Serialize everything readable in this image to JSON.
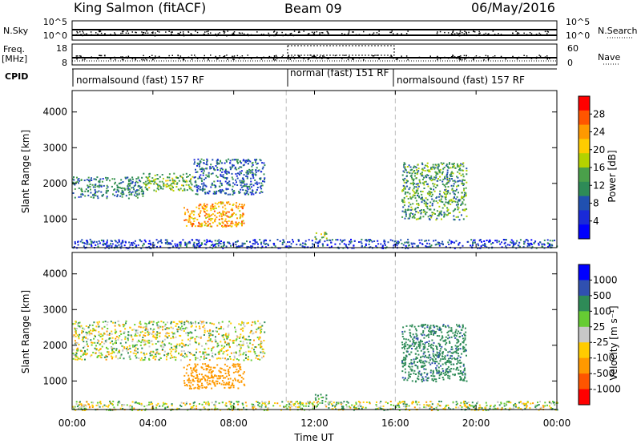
{
  "header": {
    "station": "King Salmon (fitACF)",
    "beam": "Beam 09",
    "date": "06/May/2016"
  },
  "strips": {
    "nsky_label": "N.Sky",
    "nsky_ticks": [
      "10^5",
      "10^0"
    ],
    "nsearch_label": "N.Search",
    "freq_label_1": "Freq.",
    "freq_label_2": "[MHz]",
    "freq_ticks": [
      "18",
      "8"
    ],
    "nave_label": "Nave",
    "nave_ticks": [
      "60",
      "0"
    ],
    "right_ticks_top": [
      "10^5",
      "10^0"
    ],
    "cpid_label": "CPID",
    "modes": [
      {
        "label": "normalsound (fast) 157 RF",
        "start": 0.0,
        "end": 10.6
      },
      {
        "label": "normal (fast) 151 RF",
        "start": 10.6,
        "end": 16.0
      },
      {
        "label": "normalsound (fast) 157 RF",
        "start": 16.0,
        "end": 24.0
      }
    ]
  },
  "axes": {
    "ylabel": "Slant Range [km]",
    "xlabel": "Time UT",
    "x_ticks": [
      "00:00",
      "04:00",
      "08:00",
      "12:00",
      "16:00",
      "20:00",
      "00:00"
    ],
    "y_ticks": [
      "1000",
      "2000",
      "3000",
      "4000"
    ]
  },
  "power_colorbar": {
    "label": "Power [dB]",
    "ticks": [
      "28",
      "24",
      "20",
      "16",
      "12",
      "8",
      "4"
    ],
    "colors": [
      "#ff0000",
      "#ff5500",
      "#ff9900",
      "#ffcc00",
      "#b4d200",
      "#4aa04a",
      "#2e8b57",
      "#2050b0",
      "#1a2ad8",
      "#0000ff"
    ]
  },
  "velocity_colorbar": {
    "label": "Velocity [m s⁻¹]",
    "ticks": [
      "1000",
      "500",
      "100",
      "25",
      "-25",
      "-100",
      "-500",
      "-1000"
    ],
    "colors": [
      "#0000ff",
      "#3050b0",
      "#2e8b57",
      "#66cc33",
      "#c8c8c8",
      "#ffcc00",
      "#ff9900",
      "#ff5500",
      "#ff0000"
    ]
  },
  "chart_data": {
    "type": "heatmap",
    "title": "King Salmon (fitACF) Beam 09 06/May/2016",
    "xlabel": "Time UT",
    "ylabel": "Slant Range [km]",
    "xlim": [
      0,
      24
    ],
    "ylim": [
      200,
      4600
    ],
    "mode_boundaries_hours": [
      10.6,
      16.0
    ],
    "panels": [
      {
        "name": "Power",
        "units": "dB",
        "range": [
          0,
          30
        ],
        "echo_regions": [
          {
            "t_start": 0.0,
            "t_end": 3.5,
            "range_start": 1600,
            "range_end": 2200,
            "value": 10
          },
          {
            "t_start": 3.5,
            "t_end": 6.0,
            "range_start": 1800,
            "range_end": 2300,
            "value": 14
          },
          {
            "t_start": 6.0,
            "t_end": 9.5,
            "range_start": 1700,
            "range_end": 2700,
            "value": 8
          },
          {
            "t_start": 5.5,
            "t_end": 8.5,
            "range_start": 800,
            "range_end": 1500,
            "value": 22
          },
          {
            "t_start": 12.0,
            "t_end": 12.6,
            "range_start": 450,
            "range_end": 650,
            "value": 16
          },
          {
            "t_start": 16.3,
            "t_end": 19.5,
            "range_start": 1000,
            "range_end": 2600,
            "value": 12
          },
          {
            "t_start": 0.0,
            "t_end": 24.0,
            "range_start": 200,
            "range_end": 450,
            "value": 6
          }
        ]
      },
      {
        "name": "Velocity",
        "units": "m s-1",
        "range": [
          -1000,
          1000
        ],
        "echo_regions": [
          {
            "t_start": 0.0,
            "t_end": 9.5,
            "range_start": 1600,
            "range_end": 2700,
            "value": 0
          },
          {
            "t_start": 5.5,
            "t_end": 8.5,
            "range_start": 800,
            "range_end": 1500,
            "value": -300
          },
          {
            "t_start": 12.0,
            "t_end": 12.6,
            "range_start": 450,
            "range_end": 650,
            "value": 150
          },
          {
            "t_start": 16.3,
            "t_end": 19.5,
            "range_start": 1000,
            "range_end": 2600,
            "value": 400
          },
          {
            "t_start": 0.0,
            "t_end": 24.0,
            "range_start": 200,
            "range_end": 450,
            "value": 20
          }
        ]
      }
    ]
  }
}
